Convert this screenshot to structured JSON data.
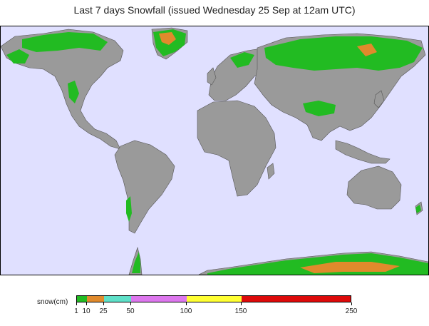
{
  "title": "Last 7 days Snowfall (issued Wednesday 25 Sep at 12am UTC)",
  "legend": {
    "label": "snow(cm)",
    "bins": [
      {
        "from": 1,
        "to": 10,
        "color": "#22bb22"
      },
      {
        "from": 10,
        "to": 25,
        "color": "#e08a2c"
      },
      {
        "from": 25,
        "to": 50,
        "color": "#5ee0c8"
      },
      {
        "from": 50,
        "to": 100,
        "color": "#dd77ee"
      },
      {
        "from": 100,
        "to": 150,
        "color": "#ffff33"
      },
      {
        "from": 150,
        "to": 250,
        "color": "#dd0a0a"
      }
    ],
    "ticks": [
      "1",
      "10",
      "25",
      "50",
      "100",
      "150",
      "250"
    ]
  },
  "colors": {
    "ocean": "#e0e0ff",
    "land": "#9a9a9a",
    "snow_light": "#22bb22",
    "snow_medium": "#e08a2c"
  }
}
